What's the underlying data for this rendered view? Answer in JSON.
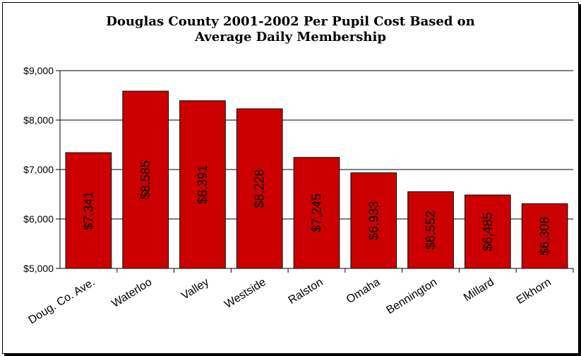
{
  "chart_data": {
    "type": "bar",
    "title_line1": "Douglas County  2001-2002 Per Pupil Cost Based on",
    "title_line2": "Average Daily Membership",
    "categories": [
      "Doug. Co. Ave.",
      "Waterloo",
      "Valley",
      "Westside",
      "Ralston",
      "Omaha",
      "Bennington",
      "Millard",
      "Elkhorn"
    ],
    "values": [
      7341,
      8585,
      8391,
      8228,
      7245,
      6933,
      6552,
      6485,
      6308
    ],
    "data_labels": [
      "$7,341",
      "$8,585",
      "$8,391",
      "$8,228",
      "$7,245",
      "$6,933",
      "$6,552",
      "$6,485",
      "$6,308"
    ],
    "y_ticks": [
      5000,
      6000,
      7000,
      8000,
      9000
    ],
    "y_tick_labels": [
      "$5,000",
      "$6,000",
      "$7,000",
      "$8,000",
      "$9,000"
    ],
    "ylim": [
      5000,
      9000
    ],
    "grid": true,
    "legend": "none",
    "bar_color": "#cc0000"
  }
}
